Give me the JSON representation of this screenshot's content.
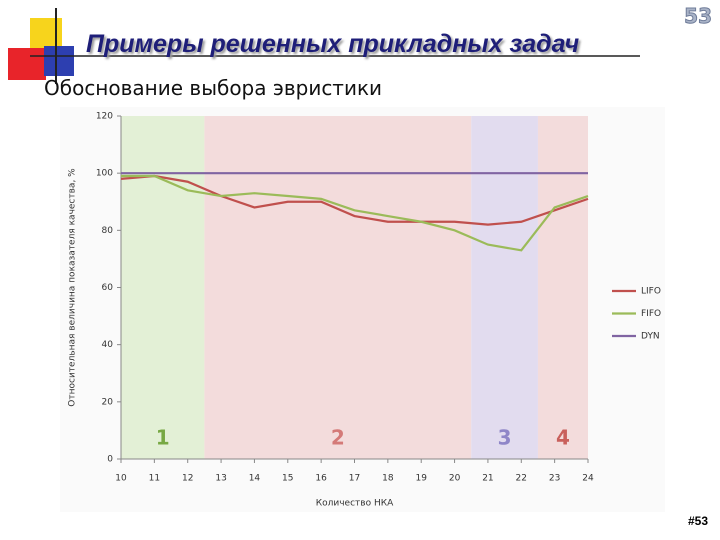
{
  "slide": {
    "title": "Примеры решенных прикладных задач",
    "subtitle": "Обоснование выбора эвристики",
    "badge": "53",
    "page_number": "#53"
  },
  "chart_data": {
    "type": "line",
    "x": [
      10,
      11,
      12,
      13,
      14,
      15,
      16,
      17,
      18,
      19,
      20,
      21,
      22,
      23,
      24
    ],
    "series": [
      {
        "name": "LIFO",
        "color": "#c0504d",
        "values": [
          98,
          99,
          97,
          92,
          88,
          90,
          90,
          85,
          83,
          83,
          83,
          82,
          83,
          87,
          91
        ]
      },
      {
        "name": "FIFO",
        "color": "#9bbb59",
        "values": [
          99,
          99,
          94,
          92,
          93,
          92,
          91,
          87,
          85,
          83,
          80,
          75,
          73,
          88,
          92
        ]
      },
      {
        "name": "DYN",
        "color": "#8064a2",
        "values": [
          100,
          100,
          100,
          100,
          100,
          100,
          100,
          100,
          100,
          100,
          100,
          100,
          100,
          100,
          100
        ]
      }
    ],
    "xlim": [
      10,
      24
    ],
    "ylim": [
      0,
      120
    ],
    "xticks": [
      10,
      11,
      12,
      13,
      14,
      15,
      16,
      17,
      18,
      19,
      20,
      21,
      22,
      23,
      24
    ],
    "yticks": [
      0,
      20,
      40,
      60,
      80,
      100,
      120
    ],
    "xlabel": "Количество НКА",
    "ylabel": "Относительная величина показателя качества, %",
    "legend": "right",
    "grid": false,
    "regions": [
      {
        "label": "1",
        "from": 10,
        "to": 12.5,
        "color": "#e3f0d6",
        "label_color": "#77a843"
      },
      {
        "label": "2",
        "from": 12.5,
        "to": 20.5,
        "color": "#f3dcdc",
        "label_color": "#d47a78"
      },
      {
        "label": "3",
        "from": 20.5,
        "to": 22.5,
        "color": "#e2dcef",
        "label_color": "#8f86c8"
      },
      {
        "label": "4",
        "from": 22.5,
        "to": 24,
        "color": "#f3dcdc",
        "label_color": "#c9605c"
      }
    ]
  }
}
